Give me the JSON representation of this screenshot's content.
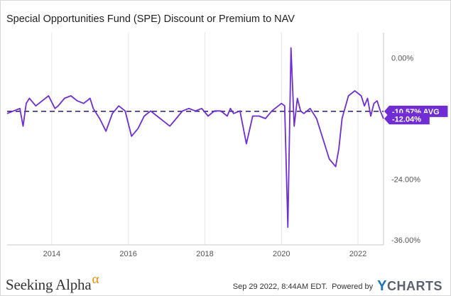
{
  "footer": {
    "brand": "Seeking Alpha",
    "brand_symbol": "α",
    "brand_symbol_color": "#f08c00",
    "timestamp": "Sep 29 2022, 8:44AM EDT.",
    "powered_by": "Powered by",
    "provider_symbol": "Y",
    "provider_rest": "CHARTS",
    "provider_color": "#1b75bb"
  },
  "chart_data": {
    "type": "line",
    "title": "Special Opportunities Fund (SPE) Discount or Premium to NAV",
    "series_color": "#6f2dd3",
    "grid": "vertical",
    "x_range": [
      "2012-11",
      "2022-09"
    ],
    "x_ticks": [
      "2014",
      "2016",
      "2018",
      "2020",
      "2022"
    ],
    "y_range": [
      -37,
      5
    ],
    "y_ticks": [
      0,
      -12,
      -24,
      -36
    ],
    "y_tick_labels": [
      "0.00%",
      "-12.00%",
      "-24.00%",
      "-36.00%"
    ],
    "average": {
      "value": -10.57,
      "label": "-10.57% AVG"
    },
    "latest": {
      "value": -12.04,
      "label": "-12.04%"
    },
    "series": [
      {
        "x": [
          "2012-11",
          "2013-01",
          "2013-03",
          "2013-04",
          "2013-05",
          "2013-06",
          "2013-08",
          "2013-10",
          "2013-12",
          "2014-02",
          "2014-03",
          "2014-05",
          "2014-07",
          "2014-09",
          "2014-11",
          "2015-01",
          "2015-02",
          "2015-04",
          "2015-06",
          "2015-08",
          "2015-10",
          "2015-12",
          "2016-02",
          "2016-04",
          "2016-06",
          "2016-08",
          "2016-10",
          "2016-12",
          "2017-02",
          "2017-04",
          "2017-06",
          "2017-08",
          "2017-10",
          "2017-12",
          "2018-02",
          "2018-04",
          "2018-06",
          "2018-08",
          "2018-09",
          "2018-10",
          "2018-12",
          "2019-02",
          "2019-04",
          "2019-06",
          "2019-08",
          "2019-10",
          "2019-12",
          "2020-01",
          "2020-02",
          "2020-03",
          "2020-04",
          "2020-05",
          "2020-06",
          "2020-07",
          "2020-08",
          "2020-10",
          "2020-12",
          "2021-02",
          "2021-04",
          "2021-06",
          "2021-07",
          "2021-08",
          "2021-10",
          "2021-12",
          "2022-02",
          "2022-03",
          "2022-04",
          "2022-05",
          "2022-06",
          "2022-07",
          "2022-08",
          "2022-09"
        ],
        "y": [
          -11.0,
          -10.5,
          -10.0,
          -13.5,
          -9.0,
          -8.0,
          -9.5,
          -8.5,
          -7.5,
          -10.0,
          -9.5,
          -8.0,
          -7.5,
          -8.5,
          -9.0,
          -8.0,
          -10.0,
          -12.0,
          -14.5,
          -11.0,
          -9.5,
          -10.5,
          -15.5,
          -14.0,
          -11.5,
          -10.5,
          -11.5,
          -12.5,
          -13.5,
          -12.0,
          -10.5,
          -10.0,
          -10.5,
          -10.0,
          -11.5,
          -10.5,
          -10.5,
          -11.5,
          -10.0,
          -11.0,
          -10.5,
          -17.0,
          -11.5,
          -11.5,
          -12.0,
          -10.5,
          -9.5,
          -9.0,
          -9.5,
          -33.5,
          2.0,
          -13.5,
          -8.0,
          -10.5,
          -11.0,
          -10.0,
          -12.0,
          -16.0,
          -20.0,
          -21.5,
          -18.0,
          -12.0,
          -7.5,
          -6.5,
          -7.5,
          -9.5,
          -8.0,
          -11.5,
          -9.0,
          -8.5,
          -10.5,
          -12.04
        ]
      }
    ]
  }
}
